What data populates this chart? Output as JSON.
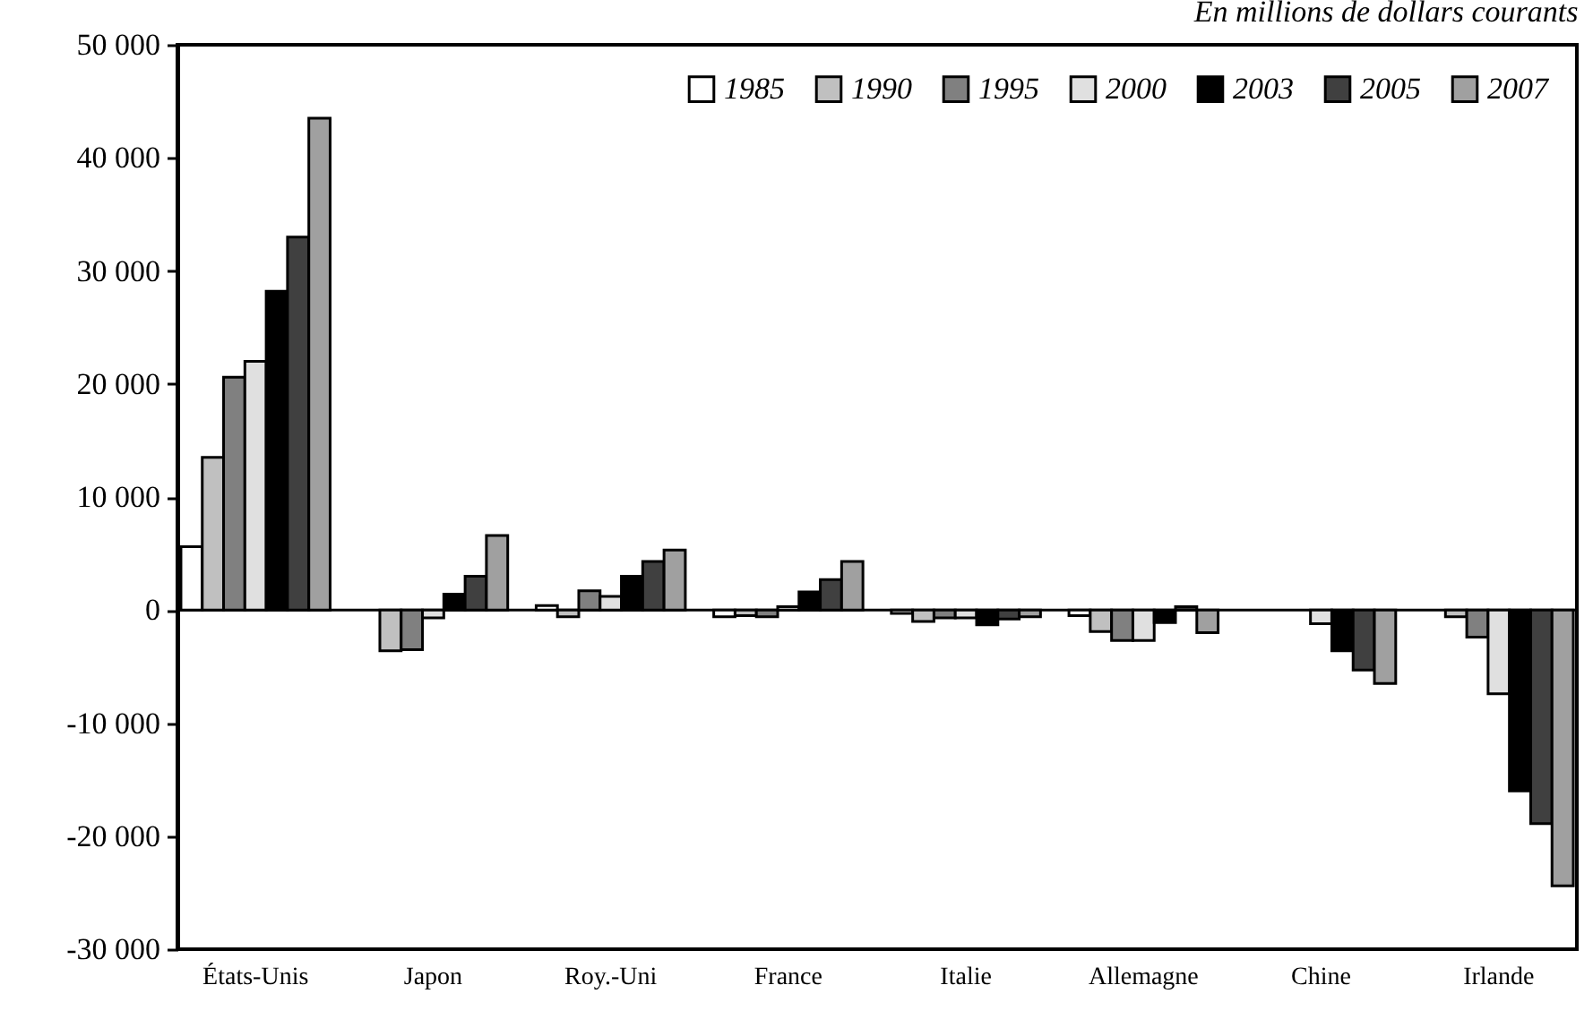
{
  "chart_data": {
    "type": "bar",
    "title": "En millions de dollars courants",
    "categories": [
      "États-Unis",
      "Japon",
      "Roy.-Uni",
      "France",
      "Italie",
      "Allemagne",
      "Chine",
      "Irlande"
    ],
    "series": [
      {
        "name": "1985",
        "color": "#ffffff",
        "values": [
          5600,
          null,
          400,
          -600,
          -300,
          -500,
          null,
          null
        ]
      },
      {
        "name": "1990",
        "color": "#c0c0c0",
        "values": [
          13500,
          -3600,
          -600,
          -500,
          -1000,
          -1900,
          null,
          -600
        ]
      },
      {
        "name": "1995",
        "color": "#808080",
        "values": [
          20600,
          -3500,
          1700,
          -600,
          -700,
          -2700,
          null,
          -2400
        ]
      },
      {
        "name": "2000",
        "color": "#e0e0e0",
        "values": [
          22000,
          -700,
          1200,
          300,
          -700,
          -2700,
          -1200,
          -7400
        ]
      },
      {
        "name": "2003",
        "color": "#000000",
        "values": [
          28200,
          1400,
          3000,
          1600,
          -1300,
          -1100,
          -3600,
          -16000
        ]
      },
      {
        "name": "2005",
        "color": "#404040",
        "values": [
          33000,
          3000,
          4300,
          2700,
          -800,
          300,
          -5300,
          -18900
        ]
      },
      {
        "name": "2007",
        "color": "#a0a0a0",
        "values": [
          43500,
          6600,
          5300,
          4300,
          -600,
          -2000,
          -6500,
          -24400
        ]
      }
    ],
    "ylim": [
      -30000,
      50000
    ],
    "yticks": [
      {
        "value": -30000,
        "label": "-30 000"
      },
      {
        "value": -20000,
        "label": "-20 000"
      },
      {
        "value": -10000,
        "label": "-10 000"
      },
      0,
      {
        "value": 10000,
        "label": "10 000"
      },
      {
        "value": 20000,
        "label": "20 000"
      },
      {
        "value": 30000,
        "label": "30 000"
      },
      {
        "value": 40000,
        "label": "40 000"
      },
      {
        "value": 50000,
        "label": "50 000"
      }
    ],
    "ref_lines": [
      {
        "axis": "y",
        "value": 0,
        "label": null
      }
    ],
    "legend": "top right",
    "grid": false
  }
}
